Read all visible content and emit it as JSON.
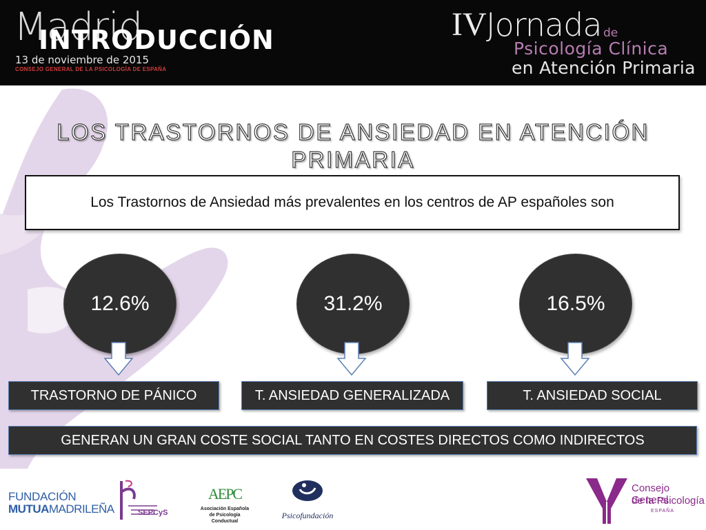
{
  "header": {
    "city": "Madrid",
    "section": "INTRODUCCIÓN",
    "date": "13 de noviembre de 2015",
    "org_small": "CONSEJO GENERAL DE LA PSICOLOGÍA DE ESPAÑA",
    "event_roman": "IV",
    "event_word": "Jornada",
    "event_de": "de",
    "event_line2": "Psicología Clínica",
    "event_line3": "en Atención Primaria"
  },
  "title": "LOS TRASTORNOS DE ANSIEDAD EN ATENCIÓN PRIMARIA",
  "subtitle": "Los Trastornos de Ansiedad más prevalentes en los centros de AP españoles son",
  "disorders": [
    {
      "percent": "12.6%",
      "label": "TRASTORNO DE PÁNICO"
    },
    {
      "percent": "31.2%",
      "label": "T. ANSIEDAD GENERALIZADA"
    },
    {
      "percent": "16.5%",
      "label": "T. ANSIEDAD SOCIAL"
    }
  ],
  "banner": "GENERAN UN GRAN COSTE SOCIAL TANTO EN COSTES DIRECTOS COMO INDIRECTOS",
  "footer": {
    "fundacion_line1": "FUNDACIÓN",
    "fundacion_mutua": "MUTUA",
    "fundacion_madrilena": "MADRILEÑA",
    "sepcys": "SEPCyS",
    "aepc_mark": "AEPC",
    "aepc_line1": "Asociación Española",
    "aepc_line2": "de Psicología Conductual",
    "psicofundacion": "Psicofundación",
    "cgp_line1": "Consejo General",
    "cgp_line2": "de la Psicología",
    "cgp_line3": "ESPAÑA"
  },
  "colors": {
    "header_bg": "#080808",
    "accent_purple": "#b57db0",
    "box_dark": "#303030",
    "border_blue": "#5a7fb5",
    "deco_lilac": "#e2d3e8"
  }
}
